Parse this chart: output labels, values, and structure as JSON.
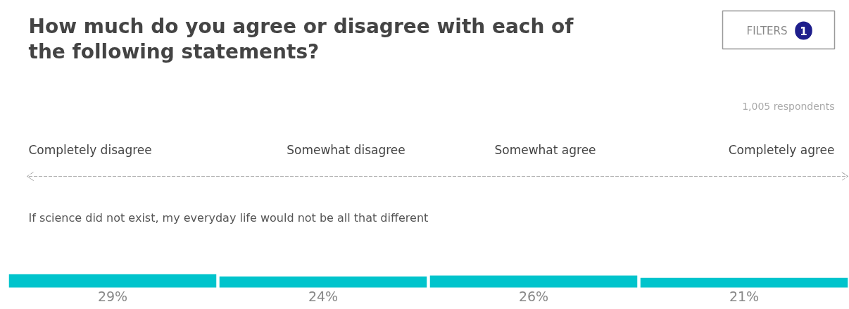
{
  "chart_data": {
    "type": "bar",
    "title": "How much do you agree or disagree with each of the following statements?",
    "subtitle": "If science did not exist, my everyday life would not be all that different",
    "categories": [
      "Completely disagree",
      "Somewhat disagree",
      "Somewhat agree",
      "Completely agree"
    ],
    "values": [
      29,
      24,
      26,
      21
    ],
    "color": "#00c4cc",
    "value_labels": [
      "29%",
      "24%",
      "26%",
      "21%"
    ],
    "annotations": [
      "1,005 respondents",
      "FILTERS",
      "1"
    ]
  }
}
